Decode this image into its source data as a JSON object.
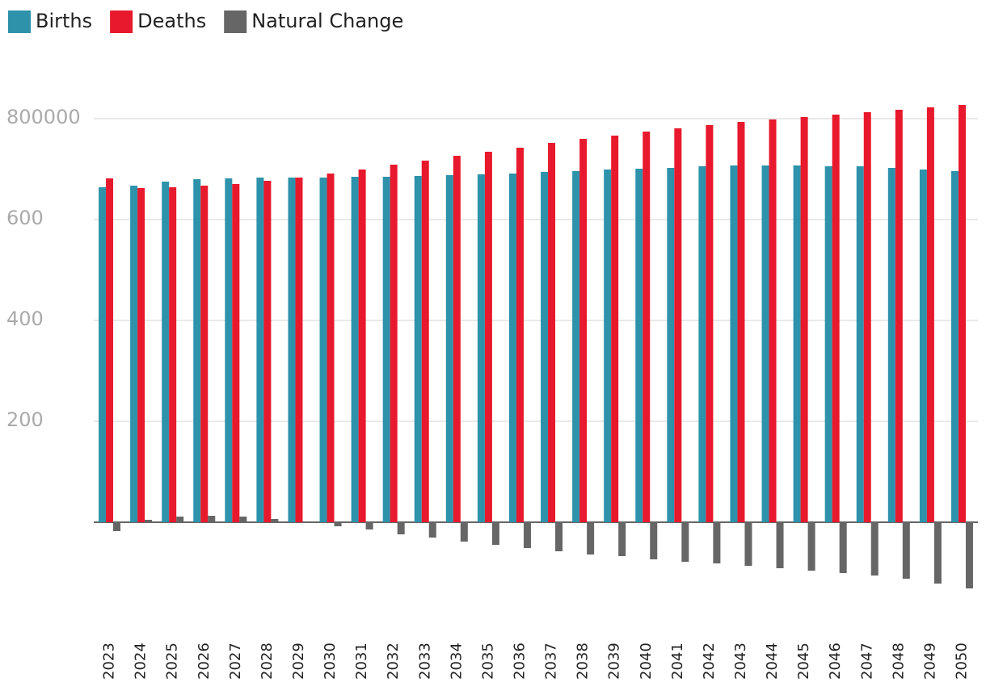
{
  "chart_data": {
    "type": "bar",
    "categories": [
      "2023",
      "2024",
      "2025",
      "2026",
      "2027",
      "2028",
      "2029",
      "2030",
      "2031",
      "2032",
      "2033",
      "2034",
      "2035",
      "2036",
      "2037",
      "2038",
      "2039",
      "2040",
      "2041",
      "2042",
      "2043",
      "2044",
      "2045",
      "2046",
      "2047",
      "2048",
      "2049",
      "2050"
    ],
    "series": [
      {
        "name": "Births",
        "color": "#2e92ab",
        "values": [
          664000,
          667200,
          675200,
          680000,
          681600,
          683200,
          683200,
          683200,
          684800,
          684800,
          686400,
          688000,
          689600,
          691200,
          694400,
          696000,
          699200,
          700800,
          702400,
          705600,
          707200,
          707200,
          707200,
          705600,
          705600,
          702400,
          699200,
          696000
        ]
      },
      {
        "name": "Deaths",
        "color": "#e8192c",
        "values": [
          681600,
          662400,
          664000,
          667200,
          670400,
          676800,
          683200,
          691200,
          699200,
          708800,
          716800,
          726400,
          734400,
          742400,
          752000,
          760000,
          766400,
          774400,
          780800,
          787200,
          793600,
          798400,
          803200,
          808000,
          812800,
          817600,
          822400,
          827200
        ]
      },
      {
        "name": "Natural Change",
        "color": "#666666",
        "values": [
          -17600,
          4800,
          11200,
          12800,
          11200,
          6400,
          0,
          -8000,
          -14400,
          -24000,
          -30400,
          -38400,
          -44800,
          -51200,
          -57600,
          -64000,
          -67200,
          -73600,
          -78400,
          -81600,
          -86400,
          -91200,
          -96000,
          -100800,
          -105600,
          -112000,
          -121600,
          -131200
        ]
      }
    ],
    "ylim": [
      -180000,
      900000
    ],
    "yticks": [
      {
        "value": 200000,
        "label": "200"
      },
      {
        "value": 400000,
        "label": "400"
      },
      {
        "value": 600000,
        "label": "600"
      },
      800000
    ],
    "grid": true,
    "legend": "top-left"
  }
}
